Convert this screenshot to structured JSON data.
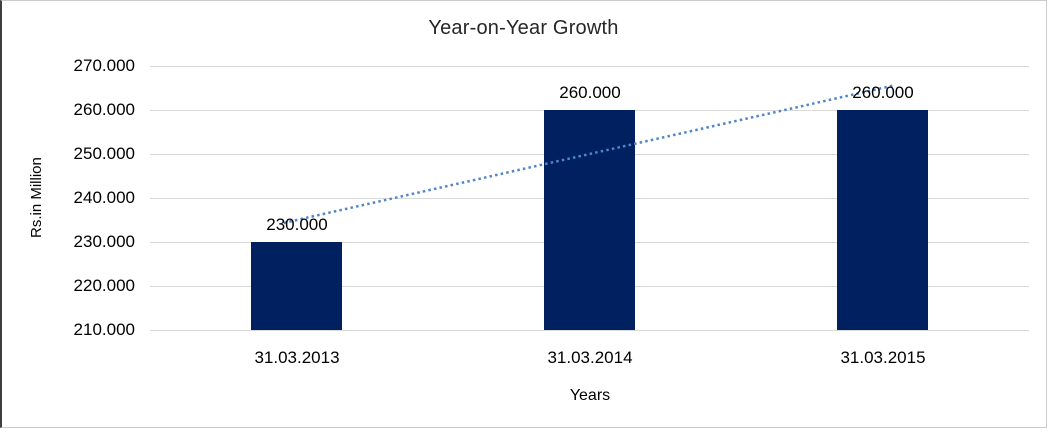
{
  "chart_data": {
    "type": "bar",
    "title": "Year-on-Year Growth",
    "xlabel": "Years",
    "ylabel": "Rs.in Million",
    "categories": [
      "31.03.2013",
      "31.03.2014",
      "31.03.2015"
    ],
    "values": [
      230,
      260,
      260
    ],
    "value_labels": [
      "230.000",
      "260.000",
      "260.000"
    ],
    "ytick_labels": [
      "270.000",
      "260.000",
      "250.000",
      "240.000",
      "230.000",
      "220.000",
      "210.000"
    ],
    "ylim": [
      210,
      270
    ],
    "grid": true,
    "legend": "none",
    "bar_color": "#002060",
    "gridline_color": "#d9d9d9",
    "trendline": {
      "type": "linear",
      "style": "dotted",
      "color": "#4f86c6"
    }
  }
}
